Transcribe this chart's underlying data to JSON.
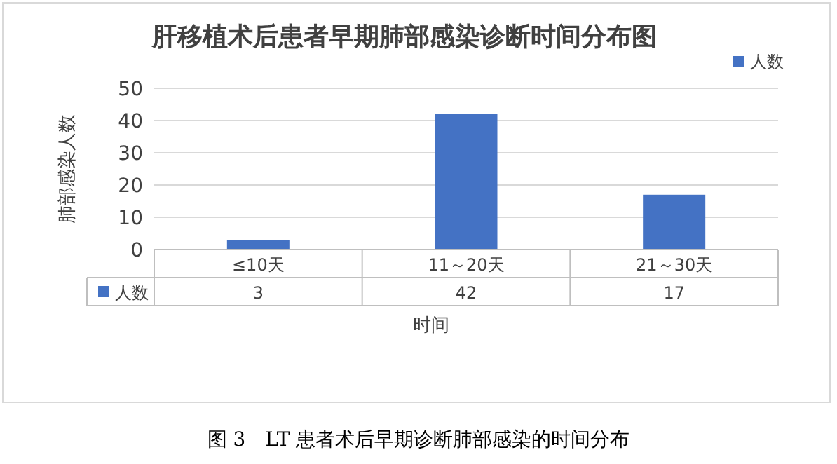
{
  "chart_data": {
    "type": "bar",
    "title": "肝移植术后患者早期肺部感染诊断时间分布图",
    "xlabel": "时间",
    "ylabel": "肺部感染人数",
    "categories": [
      "≤10天",
      "11～20天",
      "21～30天"
    ],
    "series": [
      {
        "name": "人数",
        "color": "#4472c4",
        "values": [
          3,
          42,
          17
        ]
      }
    ],
    "ylim": [
      0,
      50
    ],
    "yticks": [
      0,
      10,
      20,
      30,
      40,
      50
    ],
    "grid": "y",
    "legend": "top right",
    "data_labels": true,
    "annotations": [
      "图 3　LT 患者术后早期诊断肺部感染的时间分布"
    ]
  }
}
